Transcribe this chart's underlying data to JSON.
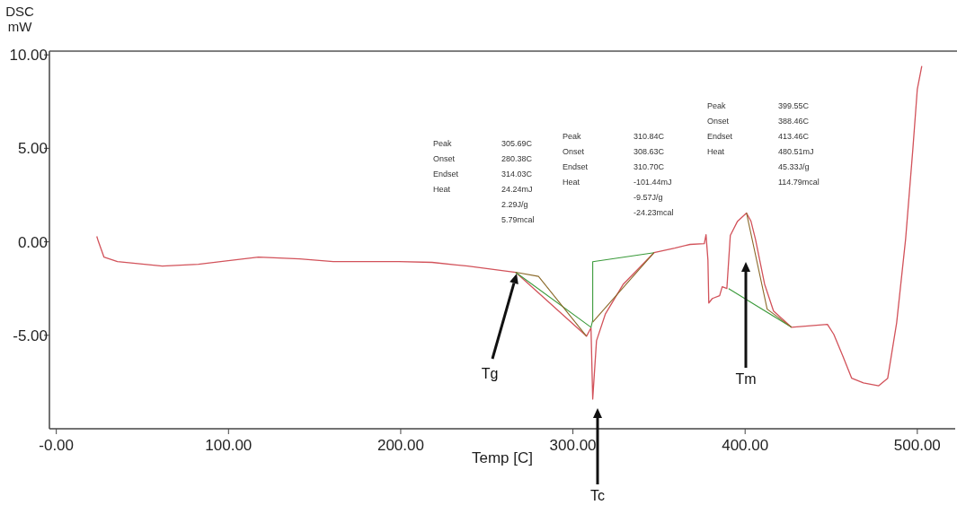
{
  "chart_data": {
    "type": "line",
    "xlabel": "Temp  [C]",
    "ylabel": "DSC\nmW",
    "xlim": [
      -4,
      522
    ],
    "ylim": [
      -10,
      10.2
    ],
    "xticks": [
      {
        "value": 0,
        "label": "-0.00"
      },
      {
        "value": 100,
        "label": "100.00"
      },
      {
        "value": 200,
        "label": "200.00"
      },
      {
        "value": 300,
        "label": "300.00"
      },
      {
        "value": 400,
        "label": "400.00"
      },
      {
        "value": 500,
        "label": "500.00"
      }
    ],
    "yticks": [
      {
        "value": -5,
        "label": "-5.00"
      },
      {
        "value": 0,
        "label": "0.00"
      },
      {
        "value": 5,
        "label": "5.00"
      },
      {
        "value": 10,
        "label": "10.00"
      }
    ],
    "grid": false,
    "line_style": "solid",
    "marker": "none",
    "series": [
      {
        "color": "#d2525a",
        "x": [
          23.5,
          24.5,
          27.7,
          35.5,
          61.6,
          82.5,
          117.4,
          141.4,
          160.8,
          198.9,
          218.2,
          239,
          266.7,
          307.9,
          310.5,
          311.5,
          313.7,
          318.9,
          329.3,
          347.1,
          359.1,
          368,
          376.3,
          377.3,
          378.4,
          378.9,
          381,
          385.2,
          386.7,
          389.4,
          391.4,
          395.6,
          400.8,
          403.4,
          406,
          411.3,
          416.5,
          426.9,
          447.8,
          451.5,
          456.7,
          461.9,
          468.7,
          477.6,
          482.8,
          488,
          493.2,
          497.4,
          500,
          502.6
        ],
        "values": [
          0.29,
          0,
          -0.82,
          -1.06,
          -1.3,
          -1.2,
          -0.82,
          -0.91,
          -1.06,
          -1.06,
          -1.1,
          -1.3,
          -1.63,
          -5.05,
          -4.6,
          -8.41,
          -5.29,
          -3.85,
          -2.26,
          -0.58,
          -0.34,
          -0.14,
          -0.1,
          0.38,
          -0.96,
          -3.27,
          -3.03,
          -2.88,
          -2.4,
          -2.5,
          0.34,
          1.1,
          1.54,
          1.1,
          0.14,
          -2.26,
          -3.7,
          -4.57,
          -4.42,
          -4.95,
          -6.1,
          -7.3,
          -7.55,
          -7.7,
          -7.3,
          -4.33,
          0.14,
          4.95,
          8.17,
          9.4
        ]
      },
      {
        "color": "#3a9a3a",
        "x": [
          266.7,
          310.5,
          311.5,
          311.5,
          347.1
        ],
        "values": [
          -1.63,
          -4.57,
          -4.2,
          -1.06,
          -0.58
        ]
      },
      {
        "color": "#3a9a3a",
        "x": [
          390.4,
          426.9
        ],
        "values": [
          -2.5,
          -4.57
        ]
      },
      {
        "color": "#8b6a2a",
        "x": [
          266.7,
          280,
          307.9
        ],
        "values": [
          -1.63,
          -1.85,
          -5.05
        ]
      },
      {
        "color": "#8b6a2a",
        "x": [
          311.5,
          347.1
        ],
        "values": [
          -4.3,
          -0.58
        ]
      },
      {
        "color": "#8b6a2a",
        "x": [
          400.8,
          412.8,
          426.9
        ],
        "values": [
          1.54,
          -3.6,
          -4.57
        ]
      }
    ],
    "annotations": [
      "Peak\t305.69C\nOnset\t280.38C\nEndset\t314.03C\nHeat\t24.24mJ\n\t2.29J/g\n\t5.79mcal",
      "Peak\t310.84C\nOnset\t308.63C\nEndset\t310.70C\nHeat\t-101.44mJ\n\t-9.57J/g\n\t-24.23mcal",
      "Peak\t399.55C\nOnset\t388.46C\nEndset\t413.46C\nHeat\t480.51mJ\n\t45.33J/g\n\t114.79mcal",
      "Tg",
      "Tc",
      "Tm"
    ]
  }
}
